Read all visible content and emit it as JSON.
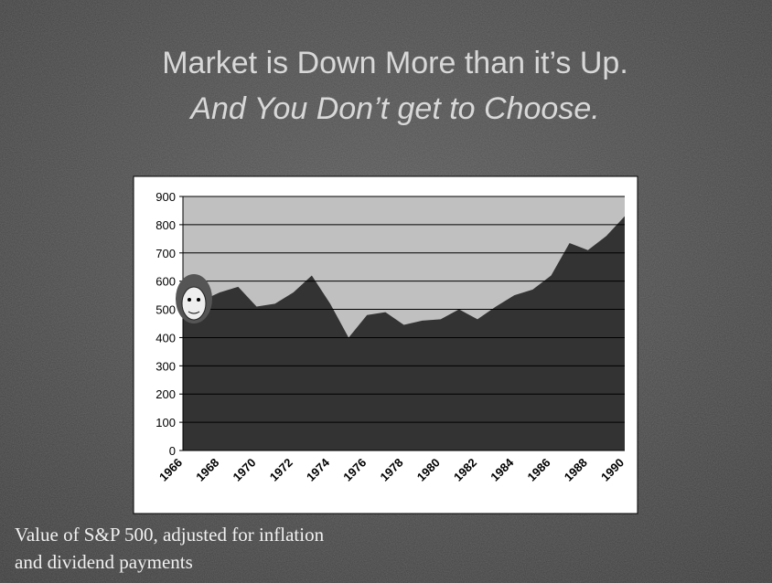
{
  "title": "Market is Down More than it’s Up.",
  "subtitle": "And You Don’t get to Choose.",
  "caption": "Value of S&P 500, adjusted for inflation and dividend payments",
  "chart_data": {
    "type": "area",
    "categories": [
      "1966",
      null,
      "1968",
      null,
      "1970",
      null,
      "1972",
      null,
      "1974",
      null,
      "1976",
      null,
      "1978",
      null,
      "1980",
      null,
      "1982",
      null,
      "1984",
      null,
      "1986",
      null,
      "1988",
      null,
      "1990"
    ],
    "values": [
      480,
      530,
      560,
      580,
      510,
      520,
      560,
      620,
      520,
      400,
      480,
      490,
      445,
      460,
      465,
      500,
      465,
      510,
      550,
      570,
      620,
      735,
      710,
      760,
      830
    ],
    "color": "#333333",
    "ylim": [
      0,
      900
    ],
    "yticks": [
      0,
      100,
      200,
      300,
      400,
      500,
      600,
      700,
      800,
      900
    ],
    "grid": true
  }
}
